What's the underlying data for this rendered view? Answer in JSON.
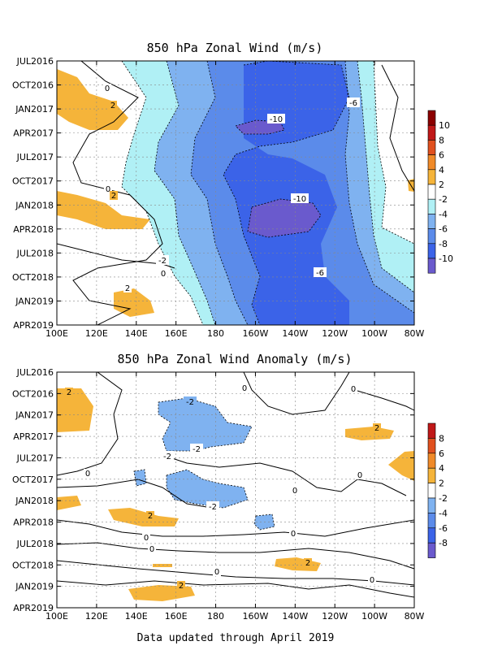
{
  "chart_data": [
    {
      "type": "heatmap",
      "title": "850 hPa Zonal Wind (m/s)",
      "x_ticks": [
        "100E",
        "120E",
        "140E",
        "160E",
        "180",
        "160W",
        "140W",
        "120W",
        "100W",
        "80W"
      ],
      "y_ticks": [
        "JUL2016",
        "OCT2016",
        "JAN2017",
        "APR2017",
        "JUL2017",
        "OCT2017",
        "JAN2018",
        "APR2018",
        "JUL2018",
        "OCT2018",
        "JAN2019",
        "APR2019"
      ],
      "grid": true,
      "colorbar": {
        "levels": [
          "-10",
          "-8",
          "-6",
          "-4",
          "-2",
          "2",
          "4",
          "6",
          "8",
          "10"
        ],
        "colors": [
          "#6a5acd",
          "#3b63e8",
          "#5b8bea",
          "#7fb2f0",
          "#b0f0f5",
          "#ffffff",
          "#f5b43a",
          "#f08a28",
          "#e0501e",
          "#c01818",
          "#8b0000"
        ]
      },
      "contour_labels": [
        "0",
        "2",
        "-10",
        "-6",
        "0",
        "2",
        "-10",
        "-2",
        "0",
        "-6",
        "2"
      ]
    },
    {
      "type": "heatmap",
      "title": "850 hPa Zonal Wind Anomaly (m/s)",
      "x_ticks": [
        "100E",
        "120E",
        "140E",
        "160E",
        "180",
        "160W",
        "140W",
        "120W",
        "100W",
        "80W"
      ],
      "y_ticks": [
        "JUL2016",
        "OCT2016",
        "JAN2017",
        "APR2017",
        "JUL2017",
        "OCT2017",
        "JAN2018",
        "APR2018",
        "JUL2018",
        "OCT2018",
        "JAN2019",
        "APR2019"
      ],
      "grid": true,
      "colorbar": {
        "levels": [
          "-8",
          "-6",
          "-4",
          "-2",
          "2",
          "4",
          "6",
          "8"
        ],
        "colors": [
          "#6a5acd",
          "#3b63e8",
          "#5b8bea",
          "#7fb2f0",
          "#ffffff",
          "#f5b43a",
          "#f08a28",
          "#e0501e",
          "#c01818"
        ]
      },
      "contour_labels": [
        "2",
        "-2",
        "0",
        "0",
        "-2",
        "-2",
        "2",
        "0",
        "0",
        "-2",
        "2",
        "0",
        "0",
        "0",
        "0",
        "2",
        "0",
        "2",
        "0"
      ]
    }
  ],
  "footer": "Data updated through April 2019"
}
